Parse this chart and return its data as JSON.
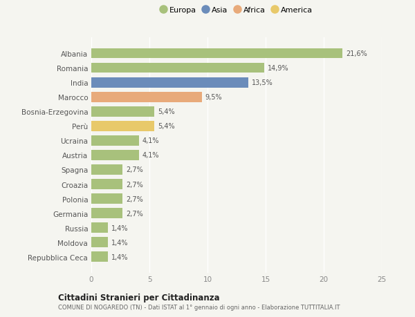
{
  "categories": [
    "Albania",
    "Romania",
    "India",
    "Marocco",
    "Bosnia-Erzegovina",
    "Perù",
    "Ucraina",
    "Austria",
    "Spagna",
    "Croazia",
    "Polonia",
    "Germania",
    "Russia",
    "Moldova",
    "Repubblica Ceca"
  ],
  "values": [
    21.6,
    14.9,
    13.5,
    9.5,
    5.4,
    5.4,
    4.1,
    4.1,
    2.7,
    2.7,
    2.7,
    2.7,
    1.4,
    1.4,
    1.4
  ],
  "labels": [
    "21,6%",
    "14,9%",
    "13,5%",
    "9,5%",
    "5,4%",
    "5,4%",
    "4,1%",
    "4,1%",
    "2,7%",
    "2,7%",
    "2,7%",
    "2,7%",
    "1,4%",
    "1,4%",
    "1,4%"
  ],
  "colors": [
    "#a8c17c",
    "#a8c17c",
    "#6b8cba",
    "#e8aa7a",
    "#a8c17c",
    "#e8c96a",
    "#a8c17c",
    "#a8c17c",
    "#a8c17c",
    "#a8c17c",
    "#a8c17c",
    "#a8c17c",
    "#a8c17c",
    "#a8c17c",
    "#a8c17c"
  ],
  "legend_labels": [
    "Europa",
    "Asia",
    "Africa",
    "America"
  ],
  "legend_colors": [
    "#a8c17c",
    "#6b8cba",
    "#e8aa7a",
    "#e8c96a"
  ],
  "xlim": [
    0,
    25
  ],
  "xticks": [
    0,
    5,
    10,
    15,
    20,
    25
  ],
  "title": "Cittadini Stranieri per Cittadinanza",
  "subtitle": "COMUNE DI NOGAREDO (TN) - Dati ISTAT al 1° gennaio di ogni anno - Elaborazione TUTTITALIA.IT",
  "bg_color": "#f5f5f0",
  "bar_height": 0.7
}
